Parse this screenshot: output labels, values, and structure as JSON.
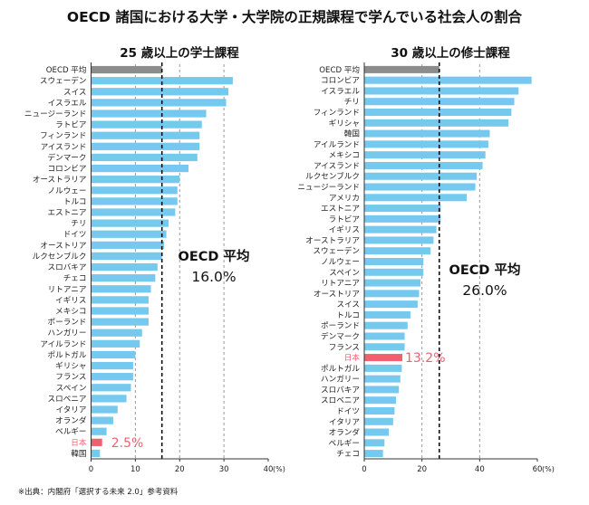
{
  "title": "OECD 諸国における大学・大学院の正規課程で学んでいる社会人の割合",
  "source_note": "※出典：内閣府「選択する未来 2.0」参考資料",
  "colors": {
    "bar": "#75c8ee",
    "oecd": "#8c8c8c",
    "japan": "#f0616f",
    "text": "#111111"
  },
  "chart_data": [
    {
      "type": "bar",
      "orientation": "horizontal",
      "title": "25 歳以上の学士課程",
      "unit": "(%)",
      "xlim": [
        0,
        40
      ],
      "xticks": [
        0,
        10,
        20,
        30,
        40
      ],
      "grid": "vertical dashed at 10, 20, 30",
      "average": {
        "label": "OECD 平均",
        "value": 16.0,
        "value_label": "16.0%"
      },
      "highlight": {
        "category": "日本",
        "value_label": "2.5%"
      },
      "categories": [
        "OECD 平均",
        "スウェーデン",
        "スイス",
        "イスラエル",
        "ニュージーランド",
        "ラトビア",
        "フィンランド",
        "アイスランド",
        "デンマーク",
        "コロンビア",
        "オーストラリア",
        "ノルウェー",
        "トルコ",
        "エストニア",
        "チリ",
        "ドイツ",
        "オーストリア",
        "ルクセンブルク",
        "スロバキア",
        "チェコ",
        "リトアニア",
        "イギリス",
        "メキシコ",
        "ポーランド",
        "ハンガリー",
        "アイルランド",
        "ポルトガル",
        "ギリシャ",
        "フランス",
        "スペイン",
        "スロベニア",
        "イタリア",
        "オランダ",
        "ベルギー",
        "日本",
        "韓国"
      ],
      "values": [
        16.0,
        32.0,
        31.0,
        30.5,
        26.0,
        25.0,
        24.5,
        24.5,
        24.0,
        22.0,
        20.0,
        19.5,
        19.5,
        19.0,
        17.5,
        17.0,
        16.5,
        16.0,
        15.0,
        14.5,
        13.5,
        13.0,
        13.0,
        13.0,
        11.5,
        11.0,
        10.0,
        9.5,
        9.5,
        9.0,
        8.0,
        6.0,
        5.0,
        3.5,
        2.5,
        2.0
      ]
    },
    {
      "type": "bar",
      "orientation": "horizontal",
      "title": "30 歳以上の修士課程",
      "unit": "(%)",
      "xlim": [
        0,
        60
      ],
      "xticks": [
        0,
        20,
        40,
        60
      ],
      "grid": "vertical dashed at 20, 40",
      "average": {
        "label": "OECD 平均",
        "value": 26.0,
        "value_label": "26.0%"
      },
      "highlight": {
        "category": "日本",
        "value_label": "13.2%"
      },
      "categories": [
        "OECD 平均",
        "コロンビア",
        "イスラエル",
        "チリ",
        "フィンランド",
        "ギリシャ",
        "韓国",
        "アイルランド",
        "メキシコ",
        "アイスランド",
        "ルクセンブルク",
        "ニュージーランド",
        "アメリカ",
        "エストニア",
        "ラトビア",
        "イギリス",
        "オーストラリア",
        "スウェーデン",
        "ノルウェー",
        "スペイン",
        "リトアニア",
        "オーストリア",
        "スイス",
        "トルコ",
        "ポーランド",
        "デンマーク",
        "フランス",
        "日本",
        "ポルトガル",
        "ハンガリー",
        "スロバキア",
        "スロベニア",
        "ドイツ",
        "イタリア",
        "オランダ",
        "ベルギー",
        "チェコ"
      ],
      "values": [
        26.0,
        58.0,
        53.5,
        52.0,
        51.0,
        50.0,
        43.5,
        43.0,
        42.0,
        41.0,
        39.0,
        38.5,
        35.5,
        26.5,
        26.5,
        25.0,
        24.0,
        23.0,
        20.5,
        20.5,
        19.5,
        19.0,
        18.5,
        16.0,
        15.0,
        14.0,
        14.0,
        13.2,
        13.0,
        12.5,
        12.0,
        11.0,
        10.5,
        10.0,
        8.5,
        7.0,
        6.5
      ]
    }
  ]
}
